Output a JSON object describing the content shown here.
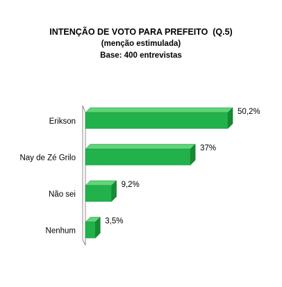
{
  "chart_data": {
    "type": "bar",
    "orientation": "horizontal",
    "style": "3d",
    "title": "INTENÇÃO DE VOTO PARA PREFEITO  (Q.5)",
    "subtitle": "(menção estimulada)",
    "note": "Base: 400 entrevistas",
    "categories": [
      "Erikson",
      "Nay de Zé Grilo",
      "Não sei",
      "Nenhum"
    ],
    "values": [
      50.2,
      37,
      9.2,
      3.5
    ],
    "data_labels": [
      "50,2%",
      "37%",
      "9,2%",
      "3,5%"
    ],
    "xlim": [
      0,
      50.2
    ],
    "grid": false,
    "legend": "none",
    "colors": {
      "bar_front": "#22b24c",
      "bar_top": "#5fd478",
      "bar_side": "#168a34",
      "axis": "#8c8c8c"
    }
  }
}
